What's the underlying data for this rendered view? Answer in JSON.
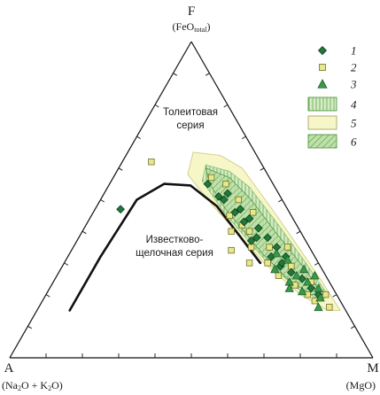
{
  "chart_data": {
    "type": "scatter",
    "diagram": "AFM ternary",
    "vertices": {
      "F": {
        "letter": "F",
        "sub_pre": "(FeO",
        "sub_idx": "total",
        "sub_post": ")"
      },
      "A": {
        "letter": "A",
        "sub_a": "(Na",
        "sub_b": "O + K",
        "sub_c": "O)"
      },
      "M": {
        "letter": "M",
        "sub": "(MgO)"
      }
    },
    "annotations": {
      "tholeiitic": [
        "Толеитовая",
        "серия"
      ],
      "calc_alkaline": [
        "Известково-",
        "щелочная серия"
      ]
    },
    "colors": {
      "diamond": "#1f7a3a",
      "square": "#e8e88a",
      "triangle": "#3a9a4a",
      "field4": "#b9dca0",
      "field5": "#f6f6c8",
      "field6": "#9ccd84",
      "line": "#111111"
    },
    "legend": [
      {
        "label": "1",
        "kind": "diamond"
      },
      {
        "label": "2",
        "kind": "square"
      },
      {
        "label": "3",
        "kind": "triangle"
      },
      {
        "label": "4",
        "kind": "field-vertical-hatch"
      },
      {
        "label": "5",
        "kind": "field-plain"
      },
      {
        "label": "6",
        "kind": "field-diagonal-hatch"
      }
    ],
    "note": "points given as ternary fractions (A, F, M), each row sums to 1",
    "divide_line": [
      [
        0.76,
        0.15,
        0.09
      ],
      [
        0.59,
        0.32,
        0.09
      ],
      [
        0.4,
        0.5,
        0.1
      ],
      [
        0.3,
        0.55,
        0.15
      ],
      [
        0.23,
        0.545,
        0.225
      ],
      [
        0.19,
        0.48,
        0.33
      ],
      [
        0.17,
        0.36,
        0.47
      ],
      [
        0.16,
        0.3,
        0.54
      ]
    ],
    "fields": {
      "field5": [
        [
          0.17,
          0.65,
          0.18
        ],
        [
          0.1,
          0.64,
          0.26
        ],
        [
          0.06,
          0.6,
          0.34
        ],
        [
          0.04,
          0.45,
          0.51
        ],
        [
          0.02,
          0.25,
          0.73
        ],
        [
          0.015,
          0.15,
          0.835
        ],
        [
          0.05,
          0.15,
          0.8
        ],
        [
          0.1,
          0.2,
          0.7
        ],
        [
          0.15,
          0.3,
          0.55
        ],
        [
          0.2,
          0.48,
          0.32
        ],
        [
          0.22,
          0.58,
          0.2
        ]
      ],
      "field4": [
        [
          0.155,
          0.61,
          0.235
        ],
        [
          0.1,
          0.59,
          0.31
        ],
        [
          0.07,
          0.54,
          0.39
        ],
        [
          0.05,
          0.42,
          0.53
        ],
        [
          0.035,
          0.3,
          0.665
        ],
        [
          0.025,
          0.2,
          0.775
        ],
        [
          0.05,
          0.18,
          0.77
        ],
        [
          0.1,
          0.22,
          0.68
        ],
        [
          0.14,
          0.3,
          0.56
        ],
        [
          0.18,
          0.46,
          0.36
        ],
        [
          0.19,
          0.56,
          0.25
        ]
      ],
      "field6": [
        [
          0.16,
          0.6,
          0.24
        ],
        [
          0.11,
          0.57,
          0.32
        ],
        [
          0.085,
          0.5,
          0.415
        ],
        [
          0.07,
          0.4,
          0.53
        ],
        [
          0.045,
          0.27,
          0.685
        ],
        [
          0.04,
          0.2,
          0.76
        ],
        [
          0.07,
          0.2,
          0.73
        ],
        [
          0.11,
          0.25,
          0.64
        ],
        [
          0.14,
          0.33,
          0.53
        ],
        [
          0.17,
          0.47,
          0.36
        ],
        [
          0.175,
          0.55,
          0.275
        ]
      ]
    },
    "series": [
      {
        "kind": "diamond",
        "points": [
          [
            0.46,
            0.47,
            0.07
          ],
          [
            0.18,
            0.55,
            0.27
          ],
          [
            0.16,
            0.5,
            0.34
          ],
          [
            0.15,
            0.46,
            0.39
          ],
          [
            0.14,
            0.43,
            0.43
          ],
          [
            0.13,
            0.47,
            0.4
          ],
          [
            0.12,
            0.44,
            0.44
          ],
          [
            0.11,
            0.41,
            0.48
          ],
          [
            0.1,
            0.38,
            0.52
          ],
          [
            0.09,
            0.35,
            0.56
          ],
          [
            0.12,
            0.32,
            0.56
          ],
          [
            0.13,
            0.38,
            0.49
          ],
          [
            0.08,
            0.32,
            0.6
          ],
          [
            0.09,
            0.27,
            0.64
          ],
          [
            0.11,
            0.29,
            0.6
          ],
          [
            0.07,
            0.25,
            0.68
          ],
          [
            0.06,
            0.22,
            0.72
          ],
          [
            0.05,
            0.2,
            0.75
          ],
          [
            0.17,
            0.51,
            0.32
          ],
          [
            0.14,
            0.52,
            0.34
          ],
          [
            0.1,
            0.3,
            0.6
          ],
          [
            0.15,
            0.37,
            0.48
          ]
        ]
      },
      {
        "kind": "square",
        "points": [
          [
            0.16,
            0.57,
            0.27
          ],
          [
            0.13,
            0.55,
            0.32
          ],
          [
            0.17,
            0.45,
            0.38
          ],
          [
            0.12,
            0.5,
            0.38
          ],
          [
            0.15,
            0.42,
            0.43
          ],
          [
            0.1,
            0.46,
            0.44
          ],
          [
            0.14,
            0.4,
            0.46
          ],
          [
            0.11,
            0.35,
            0.54
          ],
          [
            0.16,
            0.35,
            0.49
          ],
          [
            0.22,
            0.34,
            0.44
          ],
          [
            0.19,
            0.3,
            0.51
          ],
          [
            0.14,
            0.3,
            0.56
          ],
          [
            0.08,
            0.29,
            0.63
          ],
          [
            0.13,
            0.26,
            0.61
          ],
          [
            0.1,
            0.23,
            0.67
          ],
          [
            0.08,
            0.2,
            0.72
          ],
          [
            0.05,
            0.24,
            0.71
          ],
          [
            0.03,
            0.2,
            0.77
          ],
          [
            0.04,
            0.16,
            0.8
          ],
          [
            0.07,
            0.18,
            0.75
          ],
          [
            0.3,
            0.62,
            0.08
          ],
          [
            0.19,
            0.4,
            0.41
          ],
          [
            0.06,
            0.35,
            0.59
          ]
        ]
      },
      {
        "kind": "triangle",
        "points": [
          [
            0.1,
            0.33,
            0.57
          ],
          [
            0.13,
            0.28,
            0.59
          ],
          [
            0.08,
            0.26,
            0.66
          ],
          [
            0.11,
            0.24,
            0.65
          ],
          [
            0.06,
            0.24,
            0.7
          ],
          [
            0.09,
            0.21,
            0.7
          ],
          [
            0.05,
            0.19,
            0.76
          ],
          [
            0.07,
            0.16,
            0.77
          ],
          [
            0.04,
            0.22,
            0.74
          ],
          [
            0.03,
            0.26,
            0.71
          ],
          [
            0.12,
            0.22,
            0.66
          ],
          [
            0.05,
            0.28,
            0.67
          ],
          [
            0.08,
            0.31,
            0.61
          ]
        ]
      }
    ]
  }
}
